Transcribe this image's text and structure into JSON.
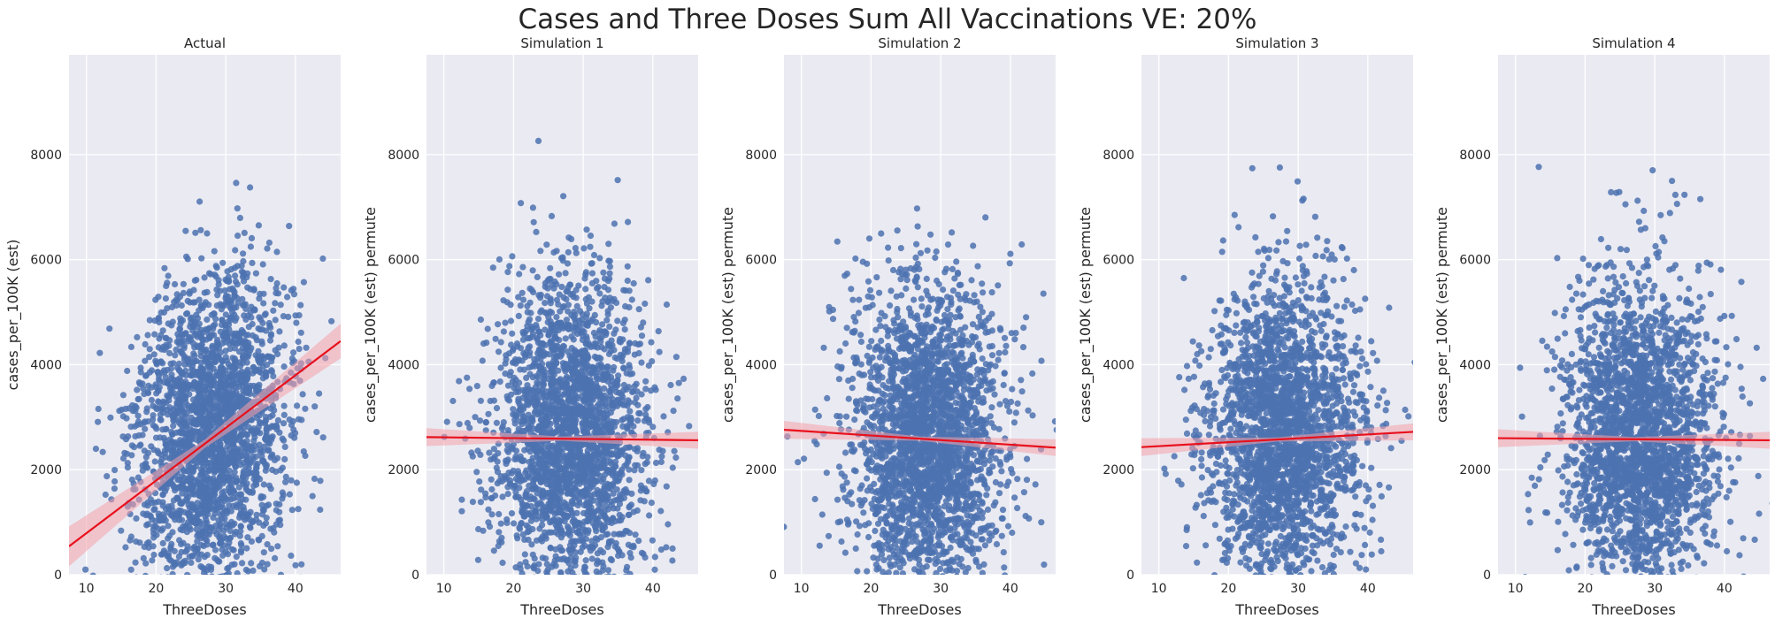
{
  "figure": {
    "suptitle": "Cases and Three Doses Sum All Vaccinations VE: 20%",
    "colors": {
      "background": "#eaeaf2",
      "grid": "#ffffff",
      "points": "#4c72b0",
      "fit_line": "#e8101c",
      "ci_band": "#f4a0aa"
    }
  },
  "chart_data": [
    {
      "type": "scatter",
      "title": "Actual",
      "xlabel": "ThreeDoses",
      "ylabel": "cases_per_100K (est)",
      "xlim": [
        7.5,
        46.5
      ],
      "ylim": [
        0,
        9900
      ],
      "xticks": [
        10,
        20,
        30,
        40
      ],
      "yticks": [
        0,
        2000,
        4000,
        6000,
        8000
      ],
      "grid": true,
      "n_points": 2500,
      "point_center": [
        28,
        2700
      ],
      "point_spread": [
        5.5,
        1500
      ],
      "seed": 11,
      "fit": {
        "x": [
          7.5,
          46.5
        ],
        "y": [
          540,
          4450
        ],
        "ci_halfwidth": [
          380,
          80,
          330
        ]
      }
    },
    {
      "type": "scatter",
      "title": "Simulation 1",
      "xlabel": "ThreeDoses",
      "ylabel": "cases_per_100K (est) permute",
      "xlim": [
        7.5,
        46.5
      ],
      "ylim": [
        0,
        9900
      ],
      "xticks": [
        10,
        20,
        30,
        40
      ],
      "yticks": [
        0,
        2000,
        4000,
        6000,
        8000
      ],
      "grid": true,
      "n_points": 2500,
      "point_center": [
        28,
        2600
      ],
      "point_spread": [
        5.5,
        1500
      ],
      "seed": 23,
      "fit": {
        "x": [
          7.5,
          46.5
        ],
        "y": [
          2620,
          2560
        ],
        "ci_halfwidth": [
          170,
          40,
          160
        ]
      }
    },
    {
      "type": "scatter",
      "title": "Simulation 2",
      "xlabel": "ThreeDoses",
      "ylabel": "cases_per_100K (est) permute",
      "xlim": [
        7.5,
        46.5
      ],
      "ylim": [
        0,
        9900
      ],
      "xticks": [
        10,
        20,
        30,
        40
      ],
      "yticks": [
        0,
        2000,
        4000,
        6000,
        8000
      ],
      "grid": true,
      "n_points": 2500,
      "point_center": [
        28,
        2600
      ],
      "point_spread": [
        5.5,
        1500
      ],
      "seed": 37,
      "fit": {
        "x": [
          7.5,
          46.5
        ],
        "y": [
          2760,
          2420
        ],
        "ci_halfwidth": [
          170,
          40,
          160
        ]
      }
    },
    {
      "type": "scatter",
      "title": "Simulation 3",
      "xlabel": "ThreeDoses",
      "ylabel": "cases_per_100K (est) permute",
      "xlim": [
        7.5,
        46.5
      ],
      "ylim": [
        0,
        9900
      ],
      "xticks": [
        10,
        20,
        30,
        40
      ],
      "yticks": [
        0,
        2000,
        4000,
        6000,
        8000
      ],
      "grid": true,
      "n_points": 2500,
      "point_center": [
        28,
        2600
      ],
      "point_spread": [
        5.5,
        1500
      ],
      "seed": 53,
      "fit": {
        "x": [
          7.5,
          46.5
        ],
        "y": [
          2430,
          2720
        ],
        "ci_halfwidth": [
          170,
          40,
          160
        ]
      }
    },
    {
      "type": "scatter",
      "title": "Simulation 4",
      "xlabel": "ThreeDoses",
      "ylabel": "cases_per_100K (est) permute",
      "xlim": [
        7.5,
        46.5
      ],
      "ylim": [
        0,
        9900
      ],
      "xticks": [
        10,
        20,
        30,
        40
      ],
      "yticks": [
        0,
        2000,
        4000,
        6000,
        8000
      ],
      "grid": true,
      "n_points": 2500,
      "point_center": [
        28,
        2600
      ],
      "point_spread": [
        5.5,
        1500
      ],
      "seed": 71,
      "fit": {
        "x": [
          7.5,
          46.5
        ],
        "y": [
          2600,
          2560
        ],
        "ci_halfwidth": [
          170,
          40,
          160
        ]
      }
    }
  ]
}
